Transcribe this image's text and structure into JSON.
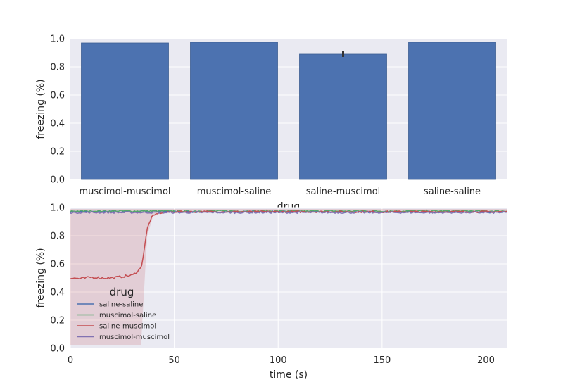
{
  "chart_data": [
    {
      "type": "bar",
      "xlabel": "drug",
      "ylabel": "freezing (%)",
      "ylim": [
        0,
        1.0
      ],
      "yticks": [
        "0.0",
        "0.2",
        "0.4",
        "0.6",
        "0.8",
        "1.0"
      ],
      "categories": [
        "muscimol-muscimol",
        "muscimol-saline",
        "saline-muscimol",
        "saline-saline"
      ],
      "values": [
        0.97,
        0.975,
        0.89,
        0.975
      ],
      "error": [
        null,
        null,
        [
          0.87,
          0.915
        ],
        null
      ],
      "color": "#4c72b0",
      "grid": true
    },
    {
      "type": "line",
      "xlabel": "time (s)",
      "ylabel": "freezing (%)",
      "xlim": [
        0,
        210
      ],
      "ylim": [
        0,
        1.0
      ],
      "xticks": [
        "0",
        "50",
        "100",
        "150",
        "200"
      ],
      "yticks": [
        "0.0",
        "0.2",
        "0.4",
        "0.6",
        "0.8",
        "1.0"
      ],
      "grid": true,
      "legend": {
        "title": "drug",
        "placement": "lower-left",
        "entries": [
          "saline-saline",
          "muscimol-saline",
          "saline-muscimol",
          "muscimol-muscimol"
        ]
      },
      "series": [
        {
          "name": "saline-saline",
          "color": "#4c72b0",
          "points": [
            [
              0,
              0.97
            ],
            [
              40,
              0.97
            ],
            [
              100,
              0.97
            ],
            [
              150,
              0.97
            ],
            [
              210,
              0.965
            ]
          ]
        },
        {
          "name": "muscimol-saline",
          "color": "#55a868",
          "points": [
            [
              0,
              0.975
            ],
            [
              40,
              0.975
            ],
            [
              100,
              0.975
            ],
            [
              150,
              0.975
            ],
            [
              210,
              0.975
            ]
          ]
        },
        {
          "name": "saline-muscimol",
          "color": "#c44e52",
          "points": [
            [
              0,
              0.5
            ],
            [
              5,
              0.495
            ],
            [
              10,
              0.505
            ],
            [
              15,
              0.5
            ],
            [
              20,
              0.5
            ],
            [
              25,
              0.51
            ],
            [
              30,
              0.52
            ],
            [
              34,
              0.57
            ],
            [
              35,
              0.65
            ],
            [
              36,
              0.75
            ],
            [
              37,
              0.85
            ],
            [
              39,
              0.93
            ],
            [
              42,
              0.96
            ],
            [
              50,
              0.97
            ],
            [
              100,
              0.97
            ],
            [
              150,
              0.97
            ],
            [
              210,
              0.97
            ]
          ],
          "band": {
            "lower": [
              [
                0,
                0.02
              ],
              [
                34,
                0.02
              ],
              [
                36,
                0.55
              ],
              [
                37,
                0.8
              ],
              [
                40,
                0.95
              ],
              [
                50,
                0.965
              ],
              [
                210,
                0.965
              ]
            ],
            "upper": [
              [
                0,
                0.99
              ],
              [
                210,
                0.99
              ]
            ]
          }
        },
        {
          "name": "muscimol-muscimol",
          "color": "#8172b2",
          "points": [
            [
              0,
              0.965
            ],
            [
              40,
              0.965
            ],
            [
              100,
              0.965
            ],
            [
              150,
              0.965
            ],
            [
              210,
              0.965
            ]
          ]
        }
      ]
    }
  ]
}
